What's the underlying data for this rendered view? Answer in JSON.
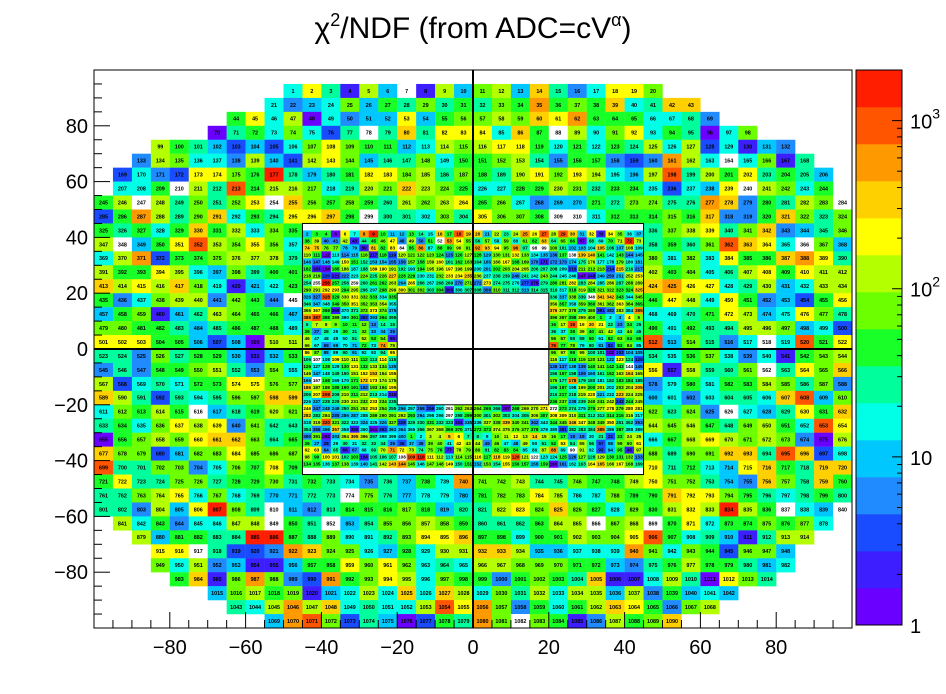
{
  "chart_data": {
    "type": "heatmap",
    "title": "χ²/NDF (from ADC=cV^α)",
    "title_parts": {
      "chi": "χ",
      "sup2": "2",
      "rest": "/NDF (from ADC=cV",
      "alpha": "α",
      "close": ")"
    },
    "xlim": [
      -100,
      100
    ],
    "ylim": [
      -100,
      100
    ],
    "x_ticks": [
      -80,
      -60,
      -40,
      -20,
      0,
      20,
      40,
      60,
      80
    ],
    "x_tick_labels": [
      "−80",
      "−60",
      "−40",
      "−20",
      "0",
      "20",
      "40",
      "60",
      "80"
    ],
    "y_ticks": [
      -80,
      -60,
      -40,
      -20,
      0,
      20,
      40,
      60,
      80
    ],
    "y_tick_labels": [
      "−80",
      "−60",
      "−40",
      "−20",
      "0",
      "20",
      "40",
      "60",
      "80"
    ],
    "color_scale": "log",
    "z_range": [
      1,
      2000
    ],
    "colorbar_ticks": [
      1,
      10,
      100,
      1000
    ],
    "colorbar_labels": [
      "1",
      "10",
      "10",
      "10"
    ],
    "colorbar_exponents": [
      "",
      "",
      "2",
      "3"
    ],
    "outer_module_size": 5,
    "inner_module_size": 2.5,
    "inner_region": [
      -45,
      45
    ],
    "hole_region": [
      -20,
      20
    ],
    "rows": [
      {
        "y": 95,
        "ranges": [
          [
            -50,
            50
          ]
        ]
      },
      {
        "y": 90,
        "ranges": [
          [
            -55,
            60
          ]
        ]
      },
      {
        "y": 85,
        "ranges": [
          [
            -65,
            65
          ]
        ]
      },
      {
        "y": 80,
        "ranges": [
          [
            -70,
            75
          ]
        ]
      },
      {
        "y": 75,
        "ranges": [
          [
            -85,
            85
          ]
        ]
      },
      {
        "y": 70,
        "ranges": [
          [
            -90,
            90
          ]
        ]
      },
      {
        "y": 65,
        "ranges": [
          [
            -95,
            95
          ]
        ]
      },
      {
        "y": 60,
        "ranges": [
          [
            -95,
            95
          ]
        ]
      },
      {
        "y": 55,
        "ranges": [
          [
            -100,
            100
          ]
        ]
      },
      {
        "y": 50,
        "ranges": [
          [
            -100,
            100
          ]
        ]
      },
      {
        "y": 45,
        "ranges": [
          [
            -100,
            -45
          ],
          [
            45,
            100
          ]
        ]
      },
      {
        "y": 40,
        "ranges": [
          [
            -100,
            -45
          ],
          [
            45,
            100
          ]
        ]
      },
      {
        "y": 35,
        "ranges": [
          [
            -100,
            -45
          ],
          [
            45,
            100
          ]
        ]
      },
      {
        "y": 30,
        "ranges": [
          [
            -100,
            -45
          ],
          [
            45,
            100
          ]
        ]
      },
      {
        "y": 25,
        "ranges": [
          [
            -100,
            -45
          ],
          [
            45,
            100
          ]
        ]
      },
      {
        "y": 20,
        "ranges": [
          [
            -100,
            -45
          ],
          [
            45,
            100
          ]
        ]
      },
      {
        "y": 15,
        "ranges": [
          [
            -100,
            -45
          ],
          [
            45,
            100
          ]
        ]
      },
      {
        "y": 10,
        "ranges": [
          [
            -100,
            -45
          ],
          [
            45,
            100
          ]
        ]
      },
      {
        "y": 5,
        "ranges": [
          [
            -100,
            -45
          ],
          [
            45,
            100
          ]
        ]
      },
      {
        "y": 0,
        "ranges": [
          [
            -100,
            -45
          ],
          [
            45,
            100
          ]
        ]
      },
      {
        "y": -5,
        "ranges": [
          [
            -100,
            -45
          ],
          [
            45,
            100
          ]
        ]
      },
      {
        "y": -10,
        "ranges": [
          [
            -100,
            -45
          ],
          [
            45,
            100
          ]
        ]
      },
      {
        "y": -15,
        "ranges": [
          [
            -100,
            -45
          ],
          [
            45,
            100
          ]
        ]
      },
      {
        "y": -20,
        "ranges": [
          [
            -100,
            -45
          ],
          [
            45,
            100
          ]
        ]
      },
      {
        "y": -25,
        "ranges": [
          [
            -100,
            -45
          ],
          [
            45,
            100
          ]
        ]
      },
      {
        "y": -30,
        "ranges": [
          [
            -100,
            -45
          ],
          [
            45,
            100
          ]
        ]
      },
      {
        "y": -35,
        "ranges": [
          [
            -100,
            -45
          ],
          [
            45,
            100
          ]
        ]
      },
      {
        "y": -40,
        "ranges": [
          [
            -100,
            -45
          ],
          [
            45,
            100
          ]
        ]
      },
      {
        "y": -45,
        "ranges": [
          [
            -100,
            100
          ]
        ]
      },
      {
        "y": -50,
        "ranges": [
          [
            -100,
            100
          ]
        ]
      },
      {
        "y": -55,
        "ranges": [
          [
            -100,
            100
          ]
        ]
      },
      {
        "y": -60,
        "ranges": [
          [
            -95,
            95
          ]
        ]
      },
      {
        "y": -65,
        "ranges": [
          [
            -90,
            90
          ]
        ]
      },
      {
        "y": -70,
        "ranges": [
          [
            -85,
            85
          ]
        ]
      },
      {
        "y": -75,
        "ranges": [
          [
            -85,
            85
          ]
        ]
      },
      {
        "y": -80,
        "ranges": [
          [
            -80,
            80
          ]
        ]
      },
      {
        "y": -85,
        "ranges": [
          [
            -70,
            70
          ]
        ]
      },
      {
        "y": -90,
        "ranges": [
          [
            -65,
            65
          ]
        ]
      },
      {
        "y": -95,
        "ranges": [
          [
            -55,
            55
          ]
        ]
      }
    ],
    "inner_rows": [
      {
        "y": 42.5,
        "ranges": [
          [
            -45,
            45
          ]
        ]
      },
      {
        "y": 40,
        "ranges": [
          [
            -45,
            45
          ]
        ]
      },
      {
        "y": 37.5,
        "ranges": [
          [
            -45,
            45
          ]
        ]
      },
      {
        "y": 35,
        "ranges": [
          [
            -45,
            45
          ]
        ]
      },
      {
        "y": 32.5,
        "ranges": [
          [
            -45,
            45
          ]
        ]
      },
      {
        "y": 30,
        "ranges": [
          [
            -45,
            45
          ]
        ]
      },
      {
        "y": 27.5,
        "ranges": [
          [
            -45,
            45
          ]
        ]
      },
      {
        "y": 25,
        "ranges": [
          [
            -45,
            45
          ]
        ]
      },
      {
        "y": 22.5,
        "ranges": [
          [
            -45,
            45
          ]
        ]
      },
      {
        "y": 20,
        "ranges": [
          [
            -45,
            -20
          ],
          [
            20,
            45
          ]
        ]
      },
      {
        "y": 17.5,
        "ranges": [
          [
            -45,
            -20
          ],
          [
            20,
            45
          ]
        ]
      },
      {
        "y": 15,
        "ranges": [
          [
            -45,
            -20
          ],
          [
            20,
            45
          ]
        ]
      },
      {
        "y": 12.5,
        "ranges": [
          [
            -45,
            -20
          ],
          [
            20,
            45
          ]
        ]
      },
      {
        "y": 10,
        "ranges": [
          [
            -45,
            -20
          ],
          [
            20,
            45
          ]
        ]
      },
      {
        "y": 7.5,
        "ranges": [
          [
            -45,
            -20
          ],
          [
            20,
            45
          ]
        ]
      },
      {
        "y": 5,
        "ranges": [
          [
            -45,
            -20
          ],
          [
            20,
            45
          ]
        ]
      },
      {
        "y": 2.5,
        "ranges": [
          [
            -45,
            -20
          ],
          [
            20,
            45
          ]
        ]
      },
      {
        "y": 0,
        "ranges": [
          [
            -45,
            -20
          ],
          [
            20,
            45
          ]
        ]
      },
      {
        "y": -2.5,
        "ranges": [
          [
            -45,
            -20
          ],
          [
            20,
            45
          ]
        ]
      },
      {
        "y": -5,
        "ranges": [
          [
            -45,
            -20
          ],
          [
            20,
            45
          ]
        ]
      },
      {
        "y": -7.5,
        "ranges": [
          [
            -45,
            -20
          ],
          [
            20,
            45
          ]
        ]
      },
      {
        "y": -10,
        "ranges": [
          [
            -45,
            -20
          ],
          [
            20,
            45
          ]
        ]
      },
      {
        "y": -12.5,
        "ranges": [
          [
            -45,
            -20
          ],
          [
            20,
            45
          ]
        ]
      },
      {
        "y": -15,
        "ranges": [
          [
            -45,
            -20
          ],
          [
            20,
            45
          ]
        ]
      },
      {
        "y": -17.5,
        "ranges": [
          [
            -45,
            -20
          ],
          [
            20,
            45
          ]
        ]
      },
      {
        "y": -20,
        "ranges": [
          [
            -45,
            45
          ]
        ]
      },
      {
        "y": -22.5,
        "ranges": [
          [
            -45,
            45
          ]
        ]
      },
      {
        "y": -25,
        "ranges": [
          [
            -45,
            45
          ]
        ]
      },
      {
        "y": -27.5,
        "ranges": [
          [
            -45,
            45
          ]
        ]
      },
      {
        "y": -30,
        "ranges": [
          [
            -45,
            45
          ]
        ]
      },
      {
        "y": -32.5,
        "ranges": [
          [
            -45,
            45
          ]
        ]
      },
      {
        "y": -35,
        "ranges": [
          [
            -45,
            45
          ]
        ]
      },
      {
        "y": -37.5,
        "ranges": [
          [
            -45,
            45
          ]
        ]
      },
      {
        "y": -40,
        "ranges": [
          [
            -45,
            45
          ]
        ]
      }
    ],
    "palette": [
      "#6a00ff",
      "#3c1eff",
      "#1a4cff",
      "#1f8bff",
      "#00c8ff",
      "#00ffe6",
      "#00ff9c",
      "#19ff28",
      "#6cff00",
      "#b4ff00",
      "#ffff00",
      "#ffd000",
      "#ff9900",
      "#ff5400",
      "#ff1e00"
    ],
    "grid": false,
    "legend": "colorbar-right"
  }
}
